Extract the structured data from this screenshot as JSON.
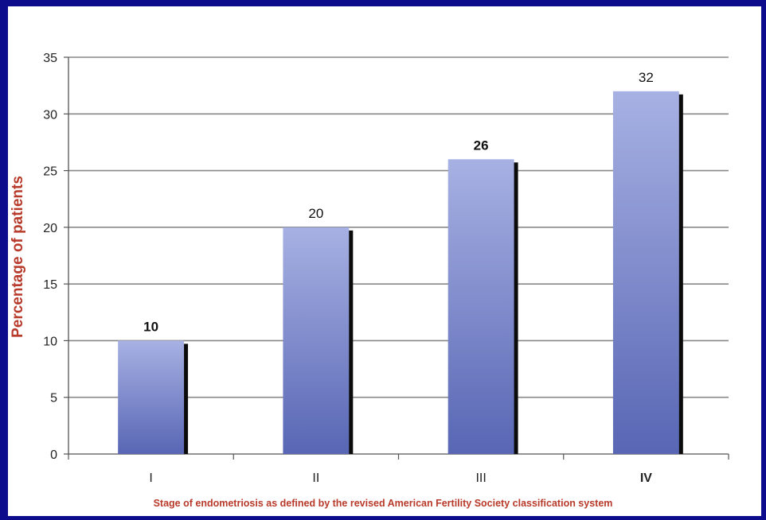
{
  "colors": {
    "background_frame": "#0c0c8c",
    "panel": "#ffffff",
    "bar_top": "#a7b1e3",
    "bar_bottom": "#5866b4",
    "bar_shadow": "#0b0b0b",
    "axis_title": "#b83a2a",
    "gridline": "#888888"
  },
  "chart_data": {
    "type": "bar",
    "categories": [
      "I",
      "II",
      "III",
      "IV"
    ],
    "values": [
      10,
      20,
      26,
      32
    ],
    "data_labels": [
      "10",
      "20",
      "26",
      "32"
    ],
    "title": "",
    "xlabel": "Stage of endometriosis as defined by the revised American Fertility Society classification system",
    "ylabel": "Percentage of patients",
    "ylim": [
      0,
      35
    ],
    "yticks": [
      "0",
      "5",
      "10",
      "15",
      "20",
      "25",
      "30",
      "35"
    ],
    "grid": true,
    "legend": "none"
  }
}
